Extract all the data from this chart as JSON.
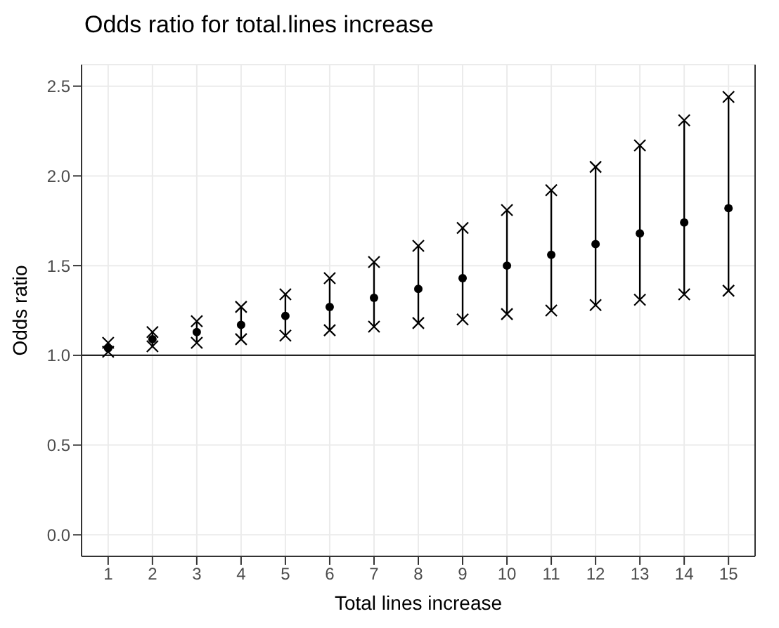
{
  "chart_data": {
    "type": "scatter",
    "title": "Odds ratio for total.lines increase",
    "xlabel": "Total lines increase",
    "ylabel": "Odds ratio",
    "x": [
      1,
      2,
      3,
      4,
      5,
      6,
      7,
      8,
      9,
      10,
      11,
      12,
      13,
      14,
      15
    ],
    "series": [
      {
        "color": "#000000",
        "marker": "circle",
        "values": [
          1.04,
          1.09,
          1.13,
          1.17,
          1.22,
          1.27,
          1.32,
          1.37,
          1.43,
          1.5,
          1.56,
          1.62,
          1.68,
          1.74,
          1.82
        ],
        "errors": [
          [
            1.02,
            1.07
          ],
          [
            1.05,
            1.13
          ],
          [
            1.07,
            1.19
          ],
          [
            1.09,
            1.27
          ],
          [
            1.11,
            1.34
          ],
          [
            1.14,
            1.43
          ],
          [
            1.16,
            1.52
          ],
          [
            1.18,
            1.61
          ],
          [
            1.2,
            1.71
          ],
          [
            1.23,
            1.81
          ],
          [
            1.25,
            1.92
          ],
          [
            1.28,
            2.05
          ],
          [
            1.31,
            2.17
          ],
          [
            1.34,
            2.31
          ],
          [
            1.36,
            2.44
          ]
        ]
      },
      {
        "color": "#000000",
        "marker": "cross",
        "values": [
          1.07,
          1.13,
          1.19,
          1.27,
          1.34,
          1.43,
          1.52,
          1.61,
          1.71,
          1.81,
          1.92,
          2.05,
          2.17,
          2.31,
          2.44
        ]
      },
      {
        "color": "#000000",
        "marker": "cross",
        "values": [
          1.02,
          1.05,
          1.07,
          1.09,
          1.11,
          1.14,
          1.16,
          1.18,
          1.2,
          1.23,
          1.25,
          1.28,
          1.31,
          1.34,
          1.36
        ]
      }
    ],
    "xlim": [
      0.4,
      15.6
    ],
    "xticks": [
      1,
      2,
      3,
      4,
      5,
      6,
      7,
      8,
      9,
      10,
      11,
      12,
      13,
      14,
      15
    ],
    "ylim": [
      -0.12,
      2.62
    ],
    "yticks": [
      {
        "value": 0,
        "label": "0.0"
      },
      {
        "value": 0.5,
        "label": "0.5"
      },
      {
        "value": 1,
        "label": "1.0"
      },
      {
        "value": 1.5,
        "label": "1.5"
      },
      {
        "value": 2,
        "label": "2.0"
      },
      {
        "value": 2.5,
        "label": "2.5"
      }
    ],
    "ref_lines": [
      {
        "axis": "y",
        "value": 1,
        "color": "#000000"
      }
    ],
    "grid": true
  }
}
